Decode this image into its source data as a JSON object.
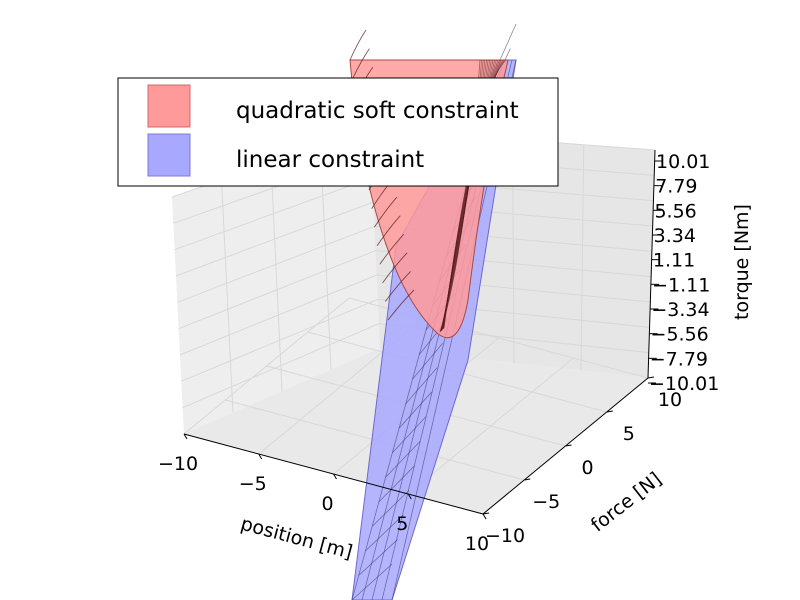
{
  "chart_data": {
    "type": "3d-surface",
    "title": "",
    "xlabel": "position [m]",
    "ylabel": "force [N]",
    "zlabel": "torque [Nm]",
    "xlim": [
      -10,
      10
    ],
    "ylim": [
      -10,
      10
    ],
    "zlim": [
      -10.01,
      10.01
    ],
    "x_ticks": [
      "−10",
      "−5",
      "0",
      "5",
      "10"
    ],
    "y_ticks": [
      "−10",
      "−5",
      "0",
      "5",
      "10"
    ],
    "z_ticks": [
      "−10.01",
      "−7.79",
      "−5.56",
      "−3.34",
      "−1.11",
      "1.11",
      "3.34",
      "5.56",
      "7.79",
      "10.01"
    ],
    "grid": true,
    "legend_position": "top-left",
    "series": [
      {
        "name": "quadratic soft constraint",
        "color": "#ff9a9a",
        "surface": "quadratic"
      },
      {
        "name": "linear constraint",
        "color": "#a8a8ff",
        "surface": "plane"
      }
    ]
  }
}
